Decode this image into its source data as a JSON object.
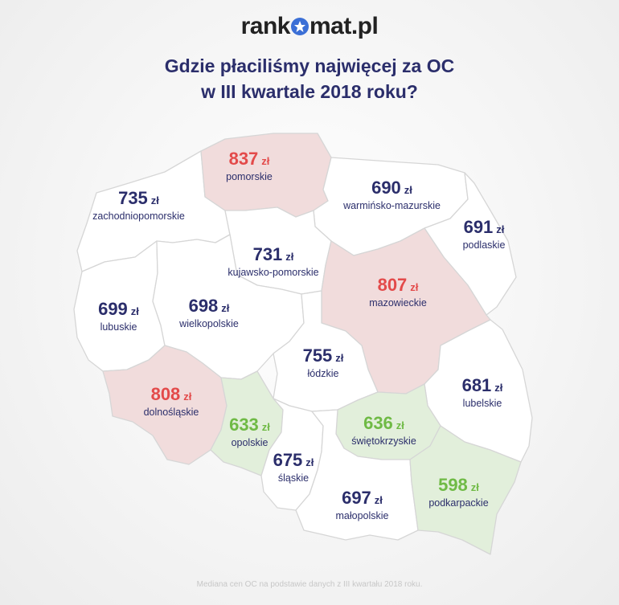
{
  "logo": {
    "left": "rank",
    "right": "mat.pl"
  },
  "title": {
    "line1": "Gdzie płaciliśmy najwięcej za OC",
    "line2": "w III kwartale 2018 roku?"
  },
  "currency": "zł",
  "regions": [
    {
      "id": "pomorskie",
      "value": "837",
      "name": "pomorskie",
      "category": "high"
    },
    {
      "id": "zachodniopomorskie",
      "value": "735",
      "name": "zachodniopomorskie",
      "category": "mid"
    },
    {
      "id": "warminsko-mazurskie",
      "value": "690",
      "name": "warmińsko-mazurskie",
      "category": "mid"
    },
    {
      "id": "podlaskie",
      "value": "691",
      "name": "podlaskie",
      "category": "mid"
    },
    {
      "id": "kujawsko-pomorskie",
      "value": "731",
      "name": "kujawsko-pomorskie",
      "category": "mid"
    },
    {
      "id": "mazowieckie",
      "value": "807",
      "name": "mazowieckie",
      "category": "high"
    },
    {
      "id": "lubuskie",
      "value": "699",
      "name": "lubuskie",
      "category": "mid"
    },
    {
      "id": "wielkopolskie",
      "value": "698",
      "name": "wielkopolskie",
      "category": "mid"
    },
    {
      "id": "lodzkie",
      "value": "755",
      "name": "łódzkie",
      "category": "mid"
    },
    {
      "id": "lubelskie",
      "value": "681",
      "name": "lubelskie",
      "category": "mid"
    },
    {
      "id": "dolnoslaskie",
      "value": "808",
      "name": "dolnośląskie",
      "category": "high"
    },
    {
      "id": "opolskie",
      "value": "633",
      "name": "opolskie",
      "category": "low"
    },
    {
      "id": "swietokrzyskie",
      "value": "636",
      "name": "świętokrzyskie",
      "category": "low"
    },
    {
      "id": "slaskie",
      "value": "675",
      "name": "śląskie",
      "category": "mid"
    },
    {
      "id": "malopolskie",
      "value": "697",
      "name": "małopolskie",
      "category": "mid"
    },
    {
      "id": "podkarpackie",
      "value": "598",
      "name": "podkarpackie",
      "category": "low"
    }
  ],
  "colors": {
    "high_fill": "#f1dcdc",
    "low_fill": "#e2efdb",
    "mid_fill": "#ffffff",
    "border": "#d6d6d6",
    "high_text": "#e34a4a",
    "low_text": "#6fba45",
    "mid_text": "#2b2e6b",
    "title": "#2b2e6b",
    "logo_star": "#3b6fd6"
  },
  "footnote": "Mediana cen OC na podstawie danych z III kwartału 2018 roku."
}
